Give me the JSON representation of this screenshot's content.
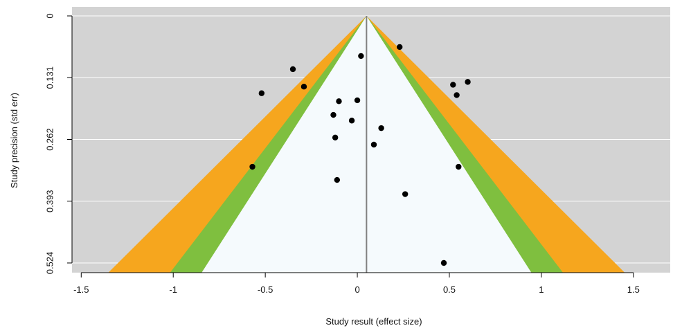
{
  "chart_data": {
    "type": "scatter",
    "subtype": "contour-enhanced funnel plot",
    "xlabel": "Study result (effect size)",
    "ylabel": "Study precision (std err)",
    "xlim": [
      -1.55,
      1.7
    ],
    "ylim": [
      0.524,
      0
    ],
    "y_reversed": true,
    "x_ticks": [
      -1.5,
      -1,
      -0.5,
      0,
      0.5,
      1,
      1.5
    ],
    "x_tick_labels": [
      "-1.5",
      "-1",
      "-0.5",
      "0",
      "0.5",
      "1",
      "1.5"
    ],
    "y_ticks": [
      0,
      0.131,
      0.262,
      0.393,
      0.524
    ],
    "y_tick_labels": [
      "0",
      "0.131",
      "0.262",
      "0.393",
      "0.524"
    ],
    "center_line_x": 0.05,
    "contours": [
      {
        "z": 2.576,
        "color": "#F6A61E"
      },
      {
        "z": 1.96,
        "color": "#7FBF3F"
      },
      {
        "z": 1.645,
        "color": "#F5FAFD"
      }
    ],
    "background_color": "#D3D3D3",
    "grid": true,
    "grid_color": "#FFFFFF",
    "point_color": "#000000",
    "points": [
      {
        "x": 0.23,
        "y": 0.066
      },
      {
        "x": 0.02,
        "y": 0.085
      },
      {
        "x": -0.35,
        "y": 0.113
      },
      {
        "x": 0.6,
        "y": 0.14
      },
      {
        "x": 0.52,
        "y": 0.146
      },
      {
        "x": -0.29,
        "y": 0.15
      },
      {
        "x": -0.52,
        "y": 0.164
      },
      {
        "x": 0.54,
        "y": 0.168
      },
      {
        "x": -0.1,
        "y": 0.181
      },
      {
        "x": 0.0,
        "y": 0.179
      },
      {
        "x": -0.13,
        "y": 0.21
      },
      {
        "x": -0.03,
        "y": 0.222
      },
      {
        "x": 0.13,
        "y": 0.238
      },
      {
        "x": -0.12,
        "y": 0.258
      },
      {
        "x": 0.09,
        "y": 0.273
      },
      {
        "x": -0.57,
        "y": 0.32
      },
      {
        "x": 0.55,
        "y": 0.32
      },
      {
        "x": -0.11,
        "y": 0.348
      },
      {
        "x": 0.26,
        "y": 0.378
      },
      {
        "x": 0.47,
        "y": 0.524
      }
    ]
  }
}
